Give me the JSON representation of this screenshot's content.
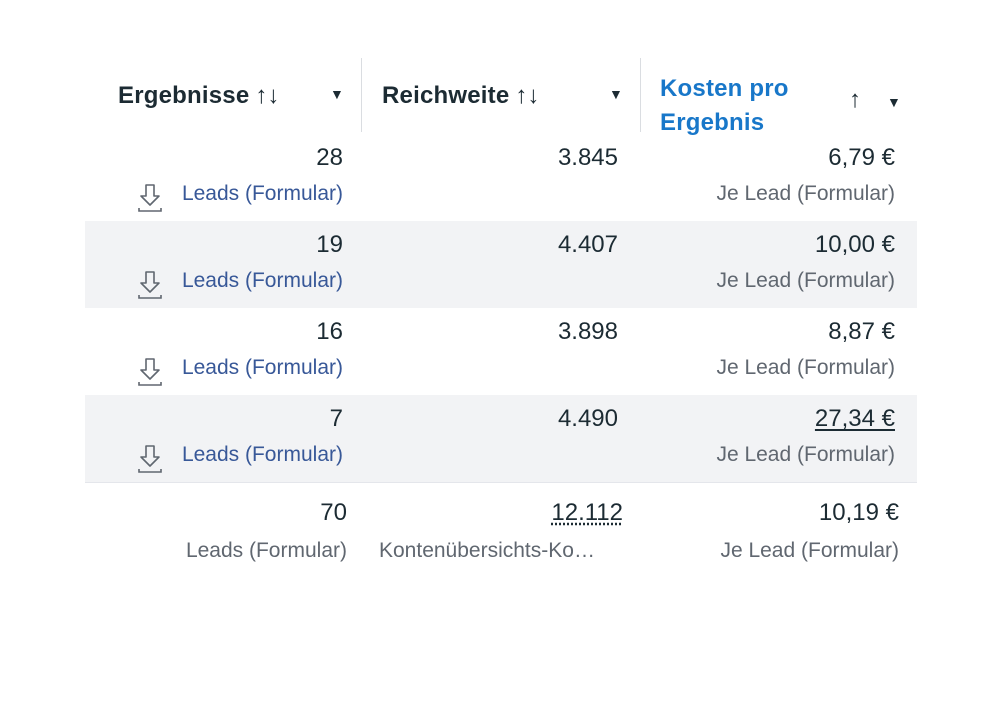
{
  "header": {
    "col1": {
      "label": "Ergebnisse",
      "sort": "↑↓",
      "caret": "▼"
    },
    "col2": {
      "label": "Reichweite",
      "sort": "↑↓",
      "caret": "▼"
    },
    "col3": {
      "label_line1": "Kosten pro",
      "label_line2": "Ergebnis",
      "sort": "↑",
      "caret": "▼"
    }
  },
  "rows": [
    {
      "results": "28",
      "results_type": "Leads (Formular)",
      "reach": "3.845",
      "cost": "6,79 €",
      "cost_type": "Je Lead (Formular)"
    },
    {
      "results": "19",
      "results_type": "Leads (Formular)",
      "reach": "4.407",
      "cost": "10,00 €",
      "cost_type": "Je Lead (Formular)"
    },
    {
      "results": "16",
      "results_type": "Leads (Formular)",
      "reach": "3.898",
      "cost": "8,87 €",
      "cost_type": "Je Lead (Formular)"
    },
    {
      "results": "7",
      "results_type": "Leads (Formular)",
      "reach": "4.490",
      "cost": "27,34 €",
      "cost_type": "Je Lead (Formular)"
    }
  ],
  "total": {
    "results": "70",
    "results_type": "Leads (Formular)",
    "reach": "12.112",
    "reach_type": "Kontenübersichts-Ko…",
    "cost": "10,19 €",
    "cost_type": "Je Lead (Formular)"
  },
  "icons": {
    "row_download": "download-icon",
    "sort": "sort-arrows-icon",
    "caret": "caret-down-icon"
  },
  "colors": {
    "link_blue": "#385898",
    "header_accent": "#1877c9",
    "alt_row": "#f2f3f5"
  }
}
